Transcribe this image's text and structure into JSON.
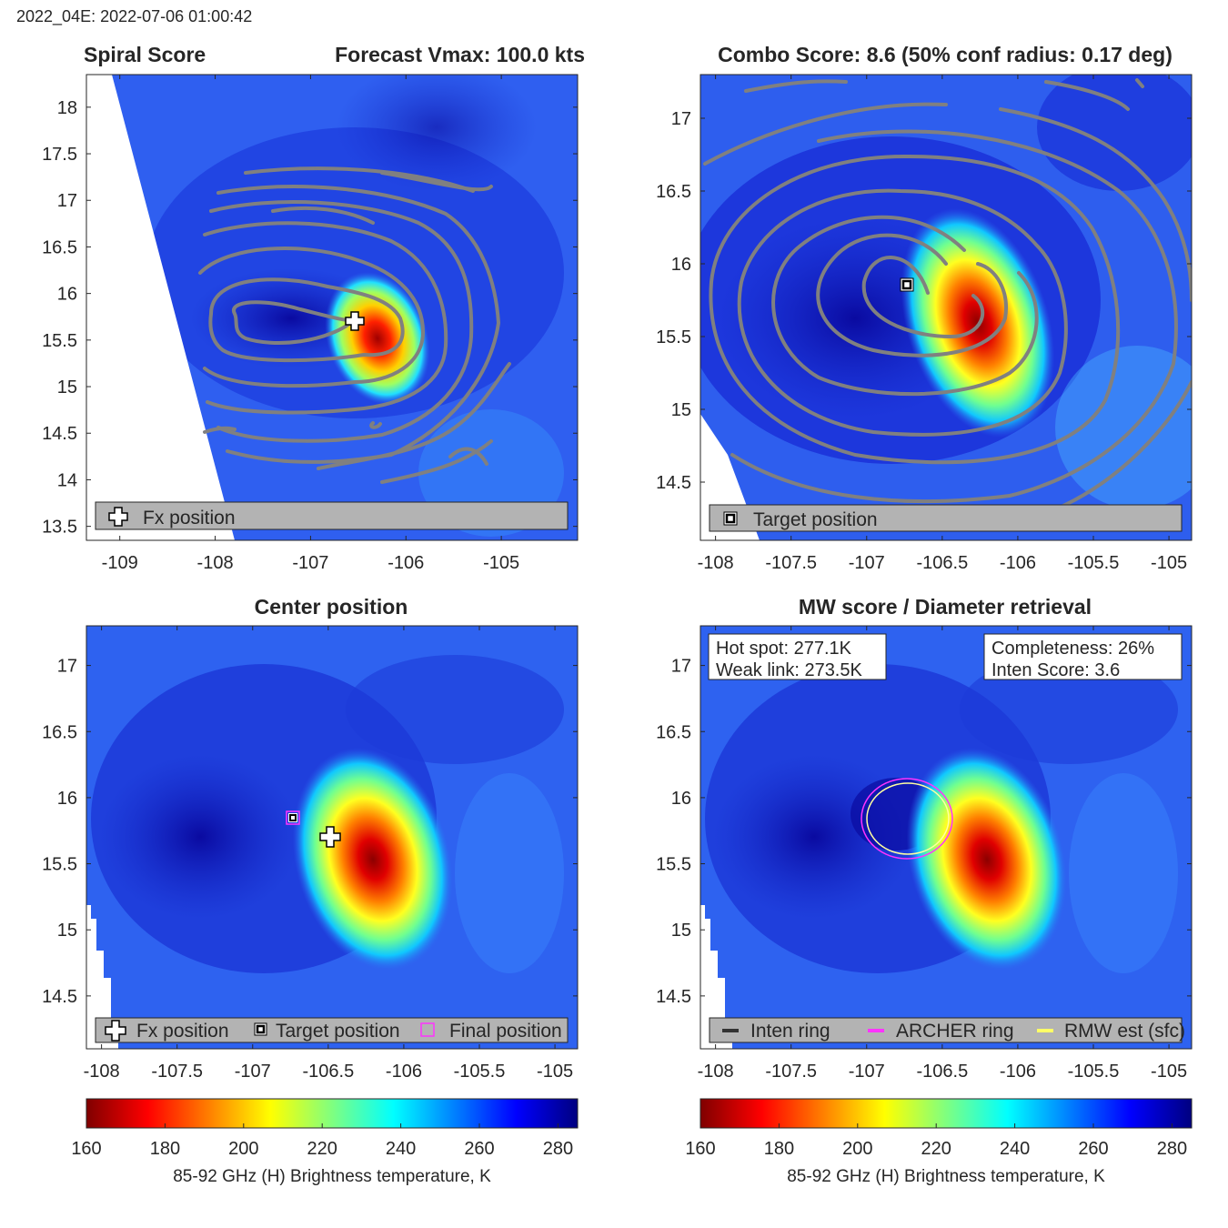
{
  "header": {
    "timestamp": "2022_04E: 2022-07-06 01:00:42"
  },
  "colors": {
    "contour": "#808080",
    "legend_bg": "#b3b3b3",
    "archer_ring": "#ff33ff",
    "rmw_ring": "#ffff66",
    "inten_ring": "#333333"
  },
  "panels": {
    "spiral": {
      "title_left": "Spiral Score",
      "title_right": "Forecast Vmax: 100.0 kts",
      "legend": [
        "Fx position"
      ]
    },
    "combo": {
      "title": "Combo Score: 8.6  (50% conf radius: 0.17 deg)",
      "legend": [
        "Target position"
      ]
    },
    "center": {
      "title": "Center position",
      "legend": [
        "Fx position",
        "Target position",
        "Final position"
      ]
    },
    "mw": {
      "title": "MW score / Diameter retrieval",
      "info_left": [
        "Hot spot: 277.1K",
        "Weak link: 273.5K"
      ],
      "info_right": [
        "Completeness: 26%",
        "Inten Score: 3.6"
      ],
      "legend": [
        "Inten ring",
        "ARCHER ring",
        "RMW est (sfc)"
      ]
    }
  },
  "colorbar": {
    "label": "85-92 GHz (H) Brightness temperature, K",
    "ticks": [
      160,
      180,
      200,
      220,
      240,
      260,
      280
    ],
    "range": [
      160,
      285
    ]
  },
  "chart_data": [
    {
      "type": "heatmap",
      "title": "Spiral Score",
      "annotation": "Forecast Vmax: 100.0 kts",
      "xlim": [
        -109.35,
        -104.2
      ],
      "ylim": [
        13.35,
        18.35
      ],
      "xticks": [
        -109,
        -108,
        -107,
        -106,
        -105
      ],
      "yticks": [
        13.5,
        14,
        14.5,
        15,
        15.5,
        16,
        16.5,
        17,
        17.5,
        18
      ],
      "hot_spot": {
        "lon": -106.25,
        "lat": 15.55
      },
      "fx_position": {
        "lon": -106.45,
        "lat": 15.65
      },
      "legend": [
        "Fx position"
      ]
    },
    {
      "type": "heatmap",
      "title": "Combo Score: 8.6  (50% conf radius: 0.17 deg)",
      "xlim": [
        -108.1,
        -104.85
      ],
      "ylim": [
        14.1,
        17.3
      ],
      "xticks": [
        -108,
        -107.5,
        -107,
        -106.5,
        -106,
        -105.5,
        -105
      ],
      "yticks": [
        14.5,
        15,
        15.5,
        16,
        16.5,
        17
      ],
      "hot_spot": {
        "lon": -106.28,
        "lat": 15.55
      },
      "target_position": {
        "lon": -106.72,
        "lat": 15.83
      },
      "legend": [
        "Target position"
      ]
    },
    {
      "type": "heatmap",
      "title": "Center position",
      "xlim": [
        -108.1,
        -104.85
      ],
      "ylim": [
        14.1,
        17.3
      ],
      "xticks": [
        -108,
        -107.5,
        -107,
        -106.5,
        -106,
        -105.5,
        -105
      ],
      "yticks": [
        14.5,
        15,
        15.5,
        16,
        16.5,
        17
      ],
      "hot_spot": {
        "lon": -106.28,
        "lat": 15.53
      },
      "fx_position": {
        "lon": -106.62,
        "lat": 15.68
      },
      "target_position": {
        "lon": -106.72,
        "lat": 15.83
      },
      "final_position": {
        "lon": -106.72,
        "lat": 15.83
      },
      "legend": [
        "Fx position",
        "Target position",
        "Final position"
      ]
    },
    {
      "type": "heatmap",
      "title": "MW score / Diameter retrieval",
      "xlim": [
        -108.1,
        -104.85
      ],
      "ylim": [
        14.1,
        17.3
      ],
      "xticks": [
        -108,
        -107.5,
        -107,
        -106.5,
        -106,
        -105.5,
        -105
      ],
      "yticks": [
        14.5,
        15,
        15.5,
        16,
        16.5,
        17
      ],
      "hot_spot_k": 277.1,
      "weak_link_k": 273.5,
      "completeness_pct": 26,
      "inten_score": 3.6,
      "archer_ring": {
        "lon": -106.7,
        "lat": 15.82,
        "r_lon": 0.3,
        "r_lat": 0.26
      },
      "rmw_ring": {
        "lon": -106.7,
        "lat": 15.82,
        "r_lon": 0.27,
        "r_lat": 0.24
      },
      "legend": [
        "Inten ring",
        "ARCHER ring",
        "RMW est (sfc)"
      ]
    }
  ]
}
